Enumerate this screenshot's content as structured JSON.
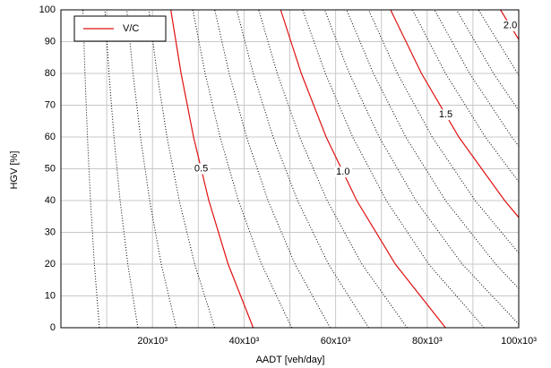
{
  "chart_data": {
    "type": "contour",
    "x_label": "AADT [veh/day]",
    "y_label": "HGV [%]",
    "xlim": [
      0,
      100000
    ],
    "ylim": [
      0,
      100
    ],
    "xticks": [
      {
        "value": 20000,
        "label": "20x10³"
      },
      {
        "value": 40000,
        "label": "40x10³"
      },
      {
        "value": 60000,
        "label": "60x10³"
      },
      {
        "value": 80000,
        "label": "80x10³"
      },
      {
        "value": 100000,
        "label": "100x10³"
      }
    ],
    "xminorticks": [
      10000,
      30000,
      50000,
      70000,
      90000
    ],
    "yticks": [
      0,
      10,
      20,
      30,
      40,
      50,
      60,
      70,
      80,
      90,
      100
    ],
    "grid": true,
    "legend": {
      "label": "V/C",
      "color": "#e01010",
      "position": "upper left"
    },
    "contours": [
      {
        "level": 0.1,
        "color": "#000000",
        "dotted": true,
        "x": [
          8400,
          7304,
          6462,
          5793,
          5250,
          4800
        ],
        "y": [
          0,
          20,
          40,
          60,
          80,
          100
        ]
      },
      {
        "level": 0.2,
        "color": "#000000",
        "dotted": true,
        "x": [
          16800,
          14609,
          12923,
          11586,
          10500,
          9600
        ],
        "y": [
          0,
          20,
          40,
          60,
          80,
          100
        ]
      },
      {
        "level": 0.3,
        "color": "#000000",
        "dotted": true,
        "x": [
          25200,
          21913,
          19385,
          17379,
          15750,
          14400
        ],
        "y": [
          0,
          20,
          40,
          60,
          80,
          100
        ]
      },
      {
        "level": 0.4,
        "color": "#000000",
        "dotted": true,
        "x": [
          33600,
          29217,
          25846,
          23172,
          21000,
          19200
        ],
        "y": [
          0,
          20,
          40,
          60,
          80,
          100
        ]
      },
      {
        "level": 0.5,
        "color": "#e01010",
        "dotted": false,
        "label_y": 50,
        "x": [
          42000,
          36522,
          32308,
          28966,
          26250,
          24000
        ],
        "y": [
          0,
          20,
          40,
          60,
          80,
          100
        ]
      },
      {
        "level": 0.6,
        "color": "#000000",
        "dotted": true,
        "x": [
          50400,
          43826,
          38769,
          34759,
          31500,
          28800
        ],
        "y": [
          0,
          20,
          40,
          60,
          80,
          100
        ]
      },
      {
        "level": 0.7,
        "color": "#000000",
        "dotted": true,
        "x": [
          58800,
          51130,
          45231,
          40552,
          36750,
          33600
        ],
        "y": [
          0,
          20,
          40,
          60,
          80,
          100
        ]
      },
      {
        "level": 0.8,
        "color": "#000000",
        "dotted": true,
        "x": [
          67200,
          58435,
          51692,
          46345,
          42000,
          38400
        ],
        "y": [
          0,
          20,
          40,
          60,
          80,
          100
        ]
      },
      {
        "level": 0.9,
        "color": "#000000",
        "dotted": true,
        "x": [
          75600,
          65739,
          58154,
          52138,
          47250,
          43200
        ],
        "y": [
          0,
          20,
          40,
          60,
          80,
          100
        ]
      },
      {
        "level": {
          "value": 1,
          "label": "1.0"
        },
        "color": "#e01010",
        "dotted": false,
        "label_y": 49,
        "x": [
          84000,
          73043,
          64615,
          57931,
          52500,
          48000
        ],
        "y": [
          0,
          20,
          40,
          60,
          80,
          100
        ]
      },
      {
        "level": 1.1,
        "color": "#000000",
        "dotted": true,
        "x": [
          92400,
          80348,
          71077,
          63724,
          57750,
          52800
        ],
        "y": [
          0,
          20,
          40,
          60,
          80,
          100
        ]
      },
      {
        "level": 1.2,
        "color": "#000000",
        "dotted": true,
        "x": [
          100000,
          87652,
          77538,
          69517,
          63000,
          57600
        ],
        "y": [
          1.1,
          20,
          40,
          60,
          80,
          100
        ]
      },
      {
        "level": 1.3,
        "color": "#000000",
        "dotted": true,
        "x": [
          100000,
          94957,
          84000,
          75310,
          68250,
          62400
        ],
        "y": [
          12.3,
          20,
          40,
          60,
          80,
          100
        ]
      },
      {
        "level": 1.4,
        "color": "#000000",
        "dotted": true,
        "x": [
          100000,
          90462,
          81103,
          73500,
          67200
        ],
        "y": [
          23.5,
          40,
          60,
          80,
          100
        ]
      },
      {
        "level": 1.5,
        "color": "#e01010",
        "dotted": false,
        "label_y": 67,
        "x": [
          100000,
          96923,
          86897,
          78750,
          72000
        ],
        "y": [
          34.7,
          40,
          60,
          80,
          100
        ]
      },
      {
        "level": 1.6,
        "color": "#000000",
        "dotted": true,
        "x": [
          100000,
          92690,
          84000,
          76800
        ],
        "y": [
          45.9,
          60,
          80,
          100
        ]
      },
      {
        "level": 1.7,
        "color": "#000000",
        "dotted": true,
        "x": [
          100000,
          98483,
          89250,
          81600
        ],
        "y": [
          57.1,
          60,
          80,
          100
        ]
      },
      {
        "level": 1.8,
        "color": "#000000",
        "dotted": true,
        "x": [
          100000,
          94500,
          86400
        ],
        "y": [
          68.3,
          80,
          100
        ]
      },
      {
        "level": 1.9,
        "color": "#000000",
        "dotted": true,
        "x": [
          100000,
          99750,
          91200
        ],
        "y": [
          79.5,
          80,
          100
        ]
      },
      {
        "level": {
          "value": 2,
          "label": "2.0"
        },
        "color": "#e01010",
        "dotted": false,
        "label_y": 95,
        "x": [
          100000,
          96000
        ],
        "y": [
          90.7,
          100
        ]
      }
    ]
  }
}
